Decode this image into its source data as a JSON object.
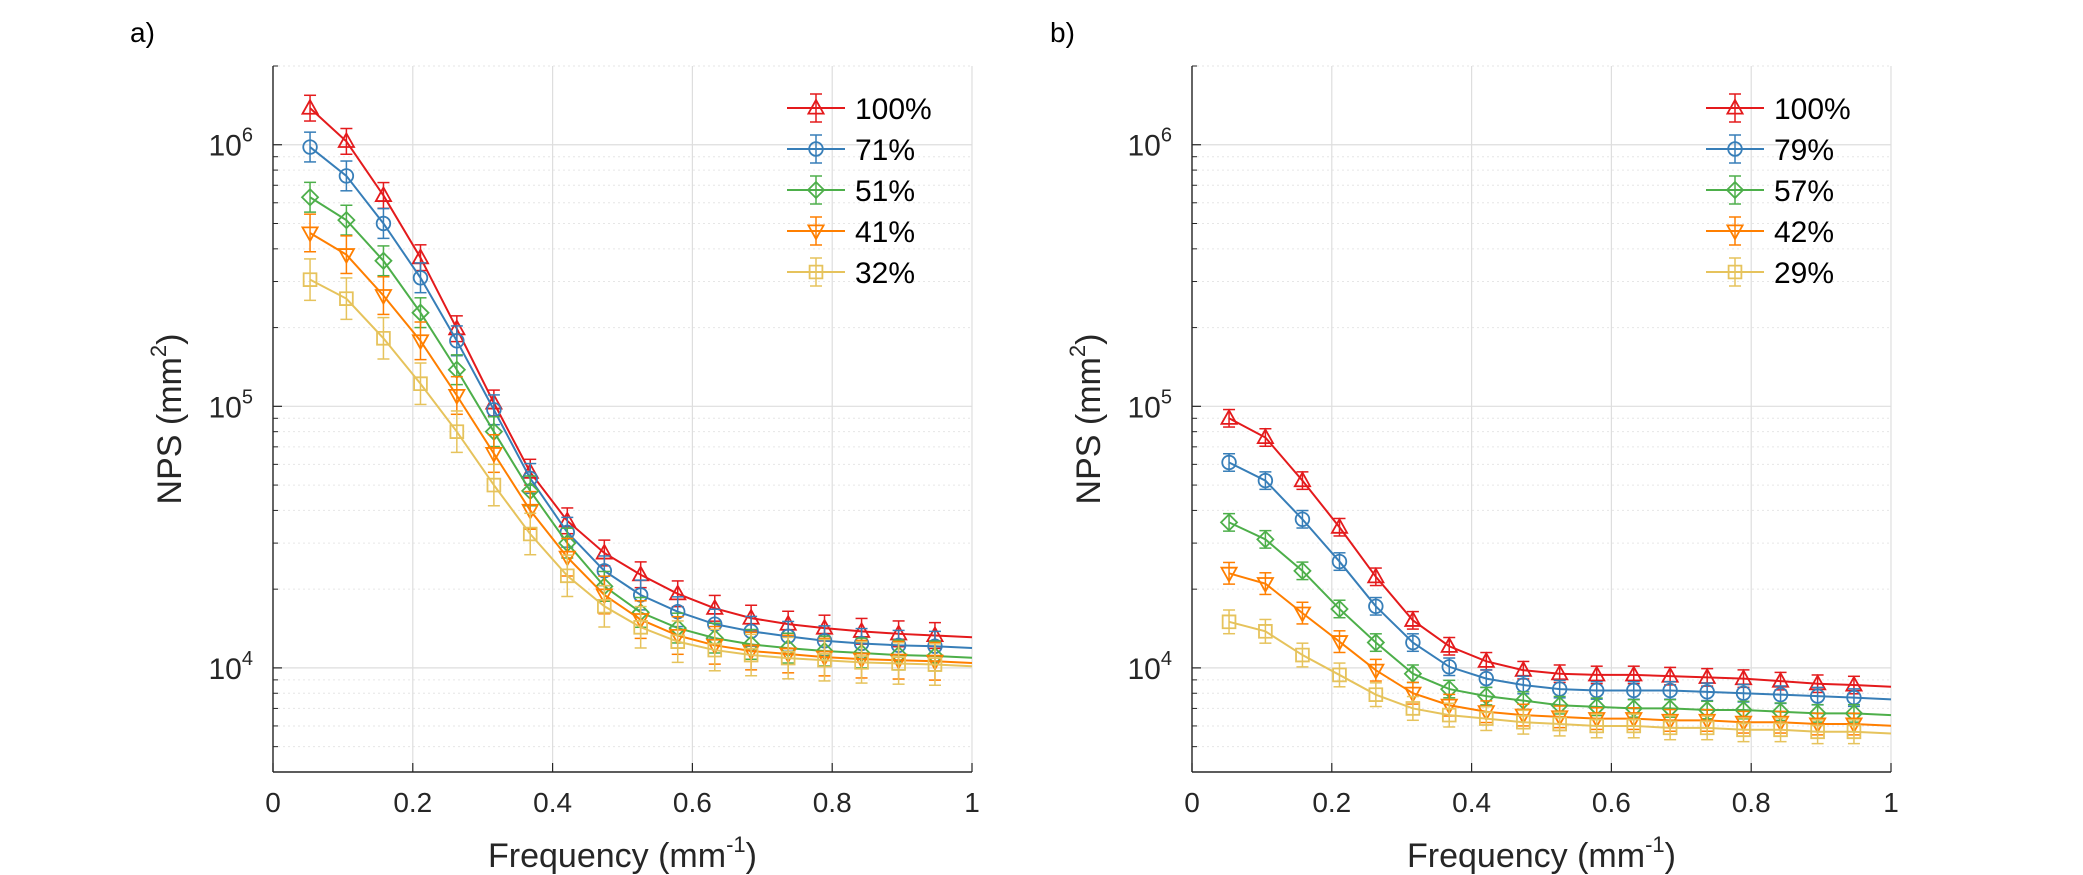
{
  "figure": {
    "panels": [
      {
        "label": "a)",
        "xlabel_main": "Frequency (mm",
        "xlabel_exp": "-1",
        "xlabel_close": ")",
        "ylabel_main": "NPS (mm",
        "ylabel_exp": "2",
        "ylabel_close": ")"
      },
      {
        "label": "b)",
        "xlabel_main": "Frequency (mm",
        "xlabel_exp": "-1",
        "xlabel_close": ")",
        "ylabel_main": "NPS (mm",
        "ylabel_exp": "2",
        "ylabel_close": ")"
      }
    ]
  },
  "chart_data": [
    {
      "type": "line",
      "label": "a)",
      "xlabel": "Frequency (mm^-1)",
      "ylabel": "NPS (mm^2)",
      "xlim": [
        0,
        1
      ],
      "ylim": [
        4000,
        2000000
      ],
      "yscale": "log",
      "grid": true,
      "legend_position": "top-right",
      "x_ticks": [
        "0",
        "0.2",
        "0.4",
        "0.6",
        "0.8",
        "1"
      ],
      "y_ticks": [
        {
          "base": "10",
          "exp": "4",
          "value": 10000
        },
        {
          "base": "10",
          "exp": "5",
          "value": 100000
        },
        {
          "base": "10",
          "exp": "6",
          "value": 1000000
        }
      ],
      "x": [
        0.053,
        0.105,
        0.158,
        0.211,
        0.263,
        0.316,
        0.368,
        0.421,
        0.474,
        0.526,
        0.579,
        0.632,
        0.684,
        0.737,
        0.789,
        0.842,
        0.895,
        0.947
      ],
      "series": [
        {
          "name": "100%",
          "color": "#e41a1c",
          "marker": "triangle-up",
          "error": 0.12,
          "values": [
            1380000,
            1030000,
            640000,
            370000,
            198000,
            103000,
            56000,
            36500,
            27500,
            22700,
            19200,
            16900,
            15500,
            14700,
            14200,
            13800,
            13500,
            13300
          ]
        },
        {
          "name": "71%",
          "color": "#377eb8",
          "marker": "circle",
          "error": 0.14,
          "values": [
            980000,
            760000,
            500000,
            310000,
            178000,
            97000,
            53000,
            33000,
            23500,
            19000,
            16400,
            14700,
            13800,
            13200,
            12700,
            12400,
            12200,
            12100
          ]
        },
        {
          "name": "51%",
          "color": "#4daf4a",
          "marker": "diamond",
          "error": 0.14,
          "values": [
            630000,
            515000,
            360000,
            228000,
            138000,
            80000,
            47500,
            30000,
            20500,
            16300,
            14200,
            13000,
            12300,
            11900,
            11600,
            11400,
            11200,
            11100
          ]
        },
        {
          "name": "41%",
          "color": "#ff7f00",
          "marker": "triangle-down",
          "error": 0.18,
          "values": [
            460000,
            380000,
            265000,
            178000,
            110000,
            66000,
            40000,
            26500,
            19000,
            15300,
            13300,
            12200,
            11600,
            11300,
            11000,
            10800,
            10700,
            10600
          ]
        },
        {
          "name": "32%",
          "color": "#e6c35c",
          "marker": "square",
          "error": 0.2,
          "values": [
            305000,
            258000,
            182000,
            122000,
            80000,
            50000,
            32500,
            22500,
            17200,
            14300,
            12600,
            11700,
            11200,
            10900,
            10700,
            10500,
            10400,
            10300
          ]
        }
      ]
    },
    {
      "type": "line",
      "label": "b)",
      "xlabel": "Frequency (mm^-1)",
      "ylabel": "NPS (mm^2)",
      "xlim": [
        0,
        1
      ],
      "ylim": [
        4000,
        2000000
      ],
      "yscale": "log",
      "grid": true,
      "legend_position": "top-right",
      "x_ticks": [
        "0",
        "0.2",
        "0.4",
        "0.6",
        "0.8",
        "1"
      ],
      "y_ticks": [
        {
          "base": "10",
          "exp": "4",
          "value": 10000
        },
        {
          "base": "10",
          "exp": "5",
          "value": 100000
        },
        {
          "base": "10",
          "exp": "6",
          "value": 1000000
        }
      ],
      "x": [
        0.053,
        0.105,
        0.158,
        0.211,
        0.263,
        0.316,
        0.368,
        0.421,
        0.474,
        0.526,
        0.579,
        0.632,
        0.684,
        0.737,
        0.789,
        0.842,
        0.895,
        0.947
      ],
      "series": [
        {
          "name": "100%",
          "color": "#e41a1c",
          "marker": "triangle-up",
          "error": 0.08,
          "values": [
            90000,
            76000,
            52000,
            34500,
            22300,
            15200,
            12100,
            10600,
            9800,
            9500,
            9400,
            9400,
            9300,
            9200,
            9100,
            8900,
            8700,
            8600
          ]
        },
        {
          "name": "79%",
          "color": "#377eb8",
          "marker": "circle",
          "error": 0.08,
          "values": [
            61000,
            52000,
            37000,
            25500,
            17200,
            12500,
            10100,
            9100,
            8600,
            8300,
            8200,
            8200,
            8200,
            8100,
            8000,
            7900,
            7800,
            7700
          ]
        },
        {
          "name": "57%",
          "color": "#4daf4a",
          "marker": "diamond",
          "error": 0.08,
          "values": [
            36000,
            31000,
            23500,
            16800,
            12500,
            9500,
            8300,
            7800,
            7500,
            7200,
            7100,
            7000,
            7000,
            6900,
            6900,
            6800,
            6700,
            6700
          ]
        },
        {
          "name": "42%",
          "color": "#ff7f00",
          "marker": "triangle-down",
          "error": 0.1,
          "values": [
            23000,
            21000,
            16200,
            12600,
            9800,
            8000,
            7200,
            6800,
            6600,
            6500,
            6400,
            6400,
            6300,
            6300,
            6200,
            6200,
            6100,
            6100
          ]
        },
        {
          "name": "29%",
          "color": "#e6c35c",
          "marker": "square",
          "error": 0.11,
          "values": [
            15000,
            13800,
            11200,
            9400,
            7900,
            7000,
            6600,
            6400,
            6200,
            6100,
            6000,
            6000,
            5900,
            5900,
            5800,
            5800,
            5700,
            5700
          ]
        }
      ]
    }
  ]
}
